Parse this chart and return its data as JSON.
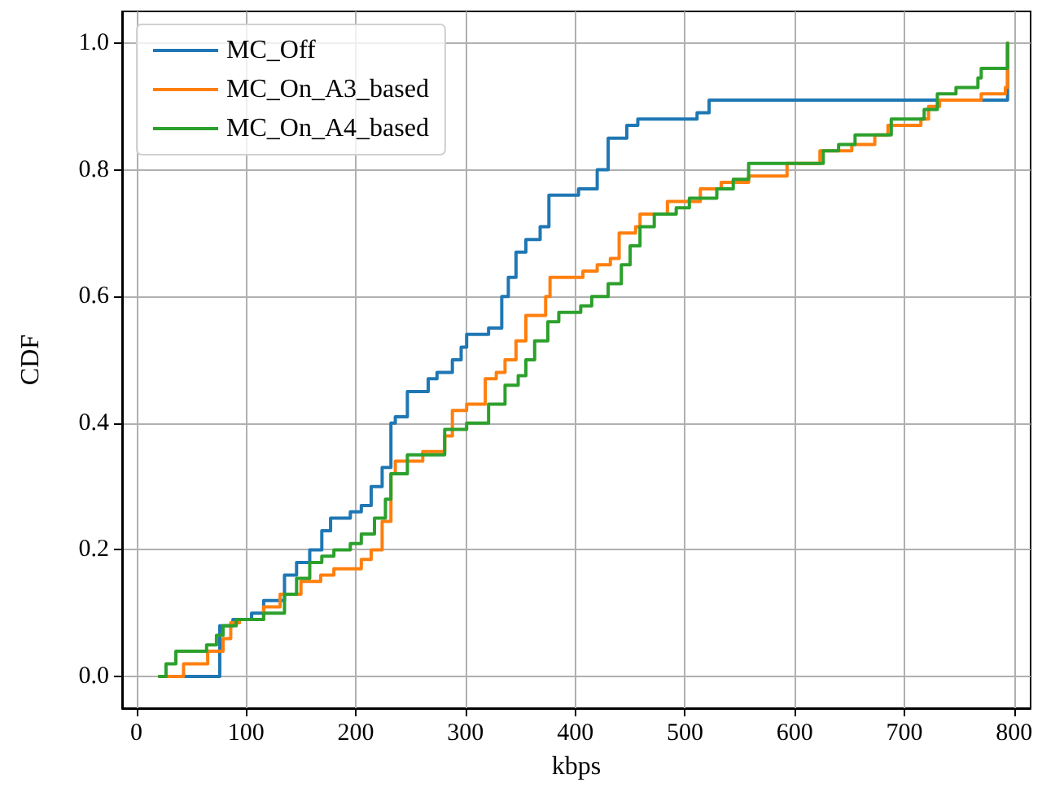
{
  "chart_data": {
    "type": "step",
    "xlabel": "kbps",
    "ylabel": "CDF",
    "xlim": [
      -13,
      815
    ],
    "ylim": [
      -0.05,
      1.05
    ],
    "xticks": [
      0,
      100,
      200,
      300,
      400,
      500,
      600,
      700,
      800
    ],
    "yticks": [
      {
        "value": 0,
        "label": "0.0"
      },
      {
        "value": 0.2,
        "label": "0.2"
      },
      {
        "value": 0.4,
        "label": "0.4"
      },
      {
        "value": 0.6,
        "label": "0.6"
      },
      {
        "value": 0.8,
        "label": "0.8"
      },
      {
        "value": 1,
        "label": "1.0"
      }
    ],
    "grid": true,
    "legend": "top left",
    "line_style": "solid",
    "marker": "none",
    "series": [
      {
        "name": "MC_Off",
        "color": "#1f77b4",
        "x": [
          21,
          76,
          88,
          105,
          116,
          135,
          146,
          158,
          169,
          177,
          195,
          205,
          214,
          224,
          232,
          236,
          247,
          266,
          274,
          288,
          296,
          301,
          321,
          333,
          339,
          346,
          355,
          368,
          376,
          403,
          420,
          430,
          447,
          457,
          511,
          522,
          794,
          794
        ],
        "values": [
          0,
          0.08,
          0.09,
          0.1,
          0.12,
          0.16,
          0.18,
          0.2,
          0.23,
          0.25,
          0.26,
          0.27,
          0.3,
          0.33,
          0.4,
          0.41,
          0.45,
          0.47,
          0.48,
          0.5,
          0.52,
          0.54,
          0.55,
          0.6,
          0.63,
          0.67,
          0.69,
          0.71,
          0.76,
          0.77,
          0.8,
          0.85,
          0.87,
          0.88,
          0.89,
          0.91,
          0.91,
          1
        ]
      },
      {
        "name": "MC_On_A3_based",
        "color": "#ff7f0e",
        "x": [
          21,
          43,
          65,
          79,
          86,
          94,
          116,
          131,
          150,
          168,
          180,
          205,
          214,
          224,
          232,
          236,
          261,
          281,
          288,
          301,
          318,
          328,
          336,
          346,
          355,
          373,
          377,
          407,
          420,
          432,
          440,
          455,
          459,
          484,
          514,
          533,
          558,
          593,
          623,
          652,
          673,
          685,
          715,
          722,
          732,
          770,
          792,
          794
        ],
        "values": [
          0,
          0.02,
          0.04,
          0.06,
          0.085,
          0.09,
          0.11,
          0.13,
          0.15,
          0.16,
          0.17,
          0.185,
          0.2,
          0.245,
          0.32,
          0.34,
          0.355,
          0.38,
          0.42,
          0.43,
          0.47,
          0.48,
          0.5,
          0.53,
          0.57,
          0.6,
          0.63,
          0.64,
          0.65,
          0.66,
          0.7,
          0.71,
          0.73,
          0.75,
          0.77,
          0.78,
          0.79,
          0.81,
          0.83,
          0.84,
          0.855,
          0.87,
          0.88,
          0.9,
          0.91,
          0.92,
          0.93,
          1
        ]
      },
      {
        "name": "MC_On_A4_based",
        "color": "#2ca02c",
        "x": [
          21,
          27,
          36,
          64,
          73,
          79,
          91,
          116,
          135,
          146,
          158,
          169,
          180,
          195,
          205,
          217,
          227,
          232,
          247,
          281,
          301,
          321,
          336,
          348,
          355,
          363,
          375,
          385,
          405,
          415,
          430,
          442,
          450,
          459,
          472,
          492,
          504,
          529,
          544,
          558,
          603,
          626,
          640,
          655,
          688,
          718,
          730,
          747,
          767,
          770,
          794
        ],
        "values": [
          0,
          0.02,
          0.04,
          0.05,
          0.065,
          0.08,
          0.09,
          0.1,
          0.13,
          0.155,
          0.18,
          0.19,
          0.2,
          0.21,
          0.225,
          0.25,
          0.28,
          0.32,
          0.35,
          0.39,
          0.4,
          0.43,
          0.46,
          0.475,
          0.5,
          0.53,
          0.56,
          0.575,
          0.585,
          0.6,
          0.62,
          0.65,
          0.68,
          0.71,
          0.73,
          0.74,
          0.755,
          0.77,
          0.785,
          0.81,
          0.81,
          0.83,
          0.84,
          0.855,
          0.88,
          0.895,
          0.92,
          0.93,
          0.945,
          0.96,
          1
        ]
      }
    ]
  }
}
